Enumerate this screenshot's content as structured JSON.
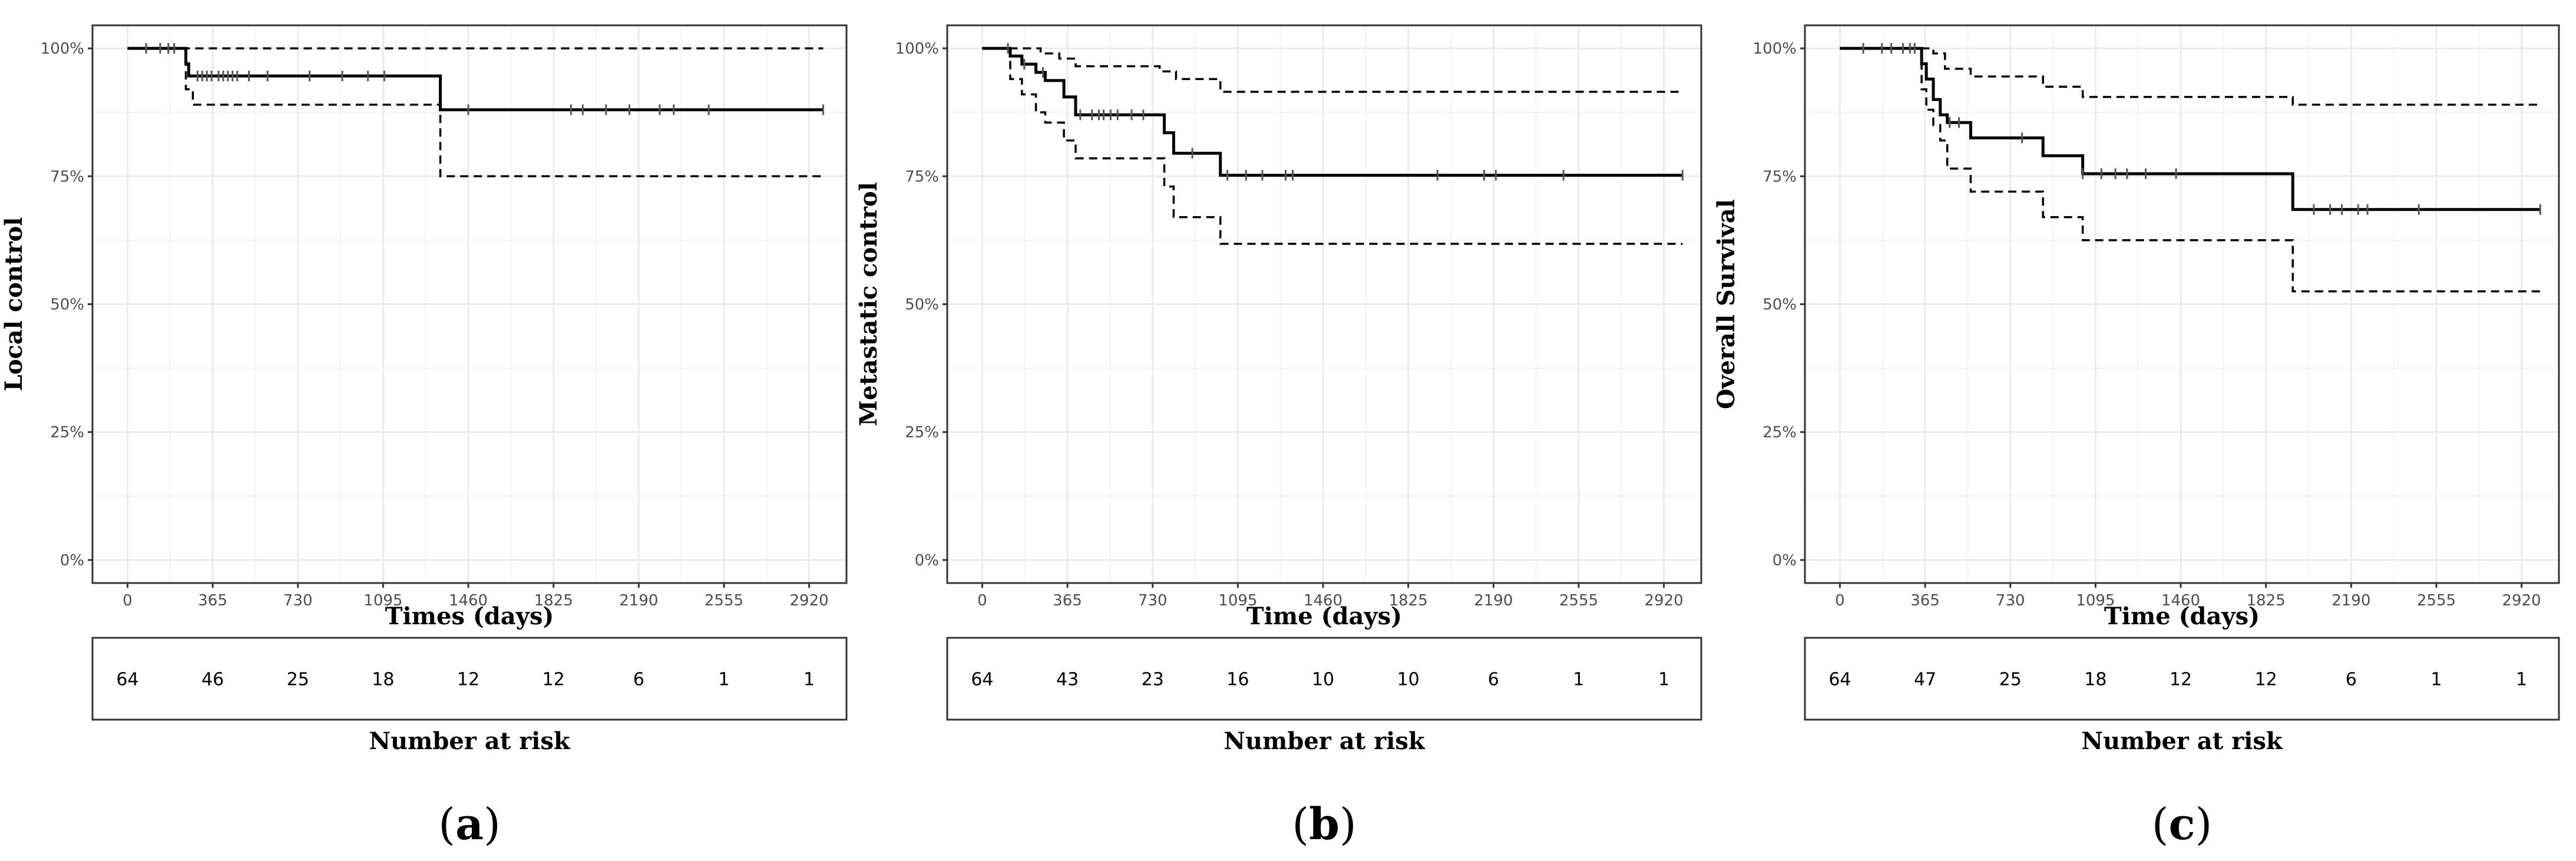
{
  "figure": {
    "risk_table_title": "Number at risk"
  },
  "chart_data": [
    {
      "id": "a",
      "type": "line",
      "panel_label": "a",
      "xlabel": "Times (days)",
      "ylabel": "Local control",
      "x_ticks": [
        0,
        365,
        730,
        1095,
        1460,
        1825,
        2190,
        2555,
        2920
      ],
      "y_ticks": [
        0,
        0.25,
        0.5,
        0.75,
        1.0
      ],
      "y_tick_labels": [
        "0%",
        "25%",
        "50%",
        "75%",
        "100%"
      ],
      "xlim": [
        -150,
        3080
      ],
      "ylim": [
        -0.045,
        1.045
      ],
      "series": [
        {
          "name": "estimate",
          "style": "solid",
          "x": [
            0,
            250,
            262,
            1340,
            2980
          ],
          "y": [
            1.0,
            0.97,
            0.946,
            0.88,
            0.88
          ]
        },
        {
          "name": "upper_ci",
          "style": "dashed",
          "x": [
            0,
            2980
          ],
          "y": [
            1.0,
            1.0
          ]
        },
        {
          "name": "lower_ci",
          "style": "dashed",
          "x": [
            0,
            250,
            280,
            1340,
            2980
          ],
          "y": [
            1.0,
            0.92,
            0.89,
            0.75,
            0.75
          ]
        }
      ],
      "censor_times": [
        80,
        140,
        175,
        200,
        300,
        320,
        340,
        360,
        390,
        410,
        430,
        450,
        470,
        520,
        600,
        780,
        920,
        1030,
        1100,
        1460,
        1900,
        1950,
        2050,
        2150,
        2280,
        2340,
        2490,
        2980
      ],
      "risk_times": [
        0,
        365,
        730,
        1095,
        1460,
        1825,
        2190,
        2555,
        2920
      ],
      "at_risk": [
        "64",
        "46",
        "25",
        "18",
        "12",
        "12",
        "6",
        "1",
        "1"
      ]
    },
    {
      "id": "b",
      "type": "line",
      "panel_label": "b",
      "xlabel": "Time (days)",
      "ylabel": "Metastatic control",
      "x_ticks": [
        0,
        365,
        730,
        1095,
        1460,
        1825,
        2190,
        2555,
        2920
      ],
      "y_ticks": [
        0,
        0.25,
        0.5,
        0.75,
        1.0
      ],
      "y_tick_labels": [
        "0%",
        "25%",
        "50%",
        "75%",
        "100%"
      ],
      "xlim": [
        -150,
        3080
      ],
      "ylim": [
        -0.045,
        1.045
      ],
      "series": [
        {
          "name": "estimate",
          "style": "solid",
          "x": [
            0,
            120,
            170,
            230,
            270,
            350,
            400,
            780,
            820,
            1020,
            3000
          ],
          "y": [
            1.0,
            0.985,
            0.969,
            0.953,
            0.937,
            0.905,
            0.87,
            0.835,
            0.795,
            0.752,
            0.752
          ]
        },
        {
          "name": "upper_ci",
          "style": "dashed",
          "x": [
            0,
            250,
            330,
            400,
            760,
            830,
            1020,
            3000
          ],
          "y": [
            1.0,
            0.99,
            0.98,
            0.965,
            0.955,
            0.94,
            0.915,
            0.915
          ]
        },
        {
          "name": "lower_ci",
          "style": "dashed",
          "x": [
            0,
            120,
            170,
            230,
            270,
            350,
            400,
            780,
            820,
            1020,
            3000
          ],
          "y": [
            1.0,
            0.94,
            0.91,
            0.875,
            0.855,
            0.82,
            0.785,
            0.73,
            0.67,
            0.618,
            0.618
          ]
        }
      ],
      "censor_times": [
        110,
        180,
        260,
        420,
        470,
        500,
        520,
        550,
        580,
        640,
        690,
        900,
        1050,
        1130,
        1200,
        1300,
        1330,
        1950,
        2150,
        2200,
        2490,
        3000
      ],
      "risk_times": [
        0,
        365,
        730,
        1095,
        1460,
        1825,
        2190,
        2555,
        2920
      ],
      "at_risk": [
        "64",
        "43",
        "23",
        "16",
        "10",
        "10",
        "6",
        "1",
        "1"
      ]
    },
    {
      "id": "c",
      "type": "line",
      "panel_label": "c",
      "xlabel": "Time (days)",
      "ylabel": "Overall Survival",
      "x_ticks": [
        0,
        365,
        730,
        1095,
        1460,
        1825,
        2190,
        2555,
        2920
      ],
      "y_ticks": [
        0,
        0.25,
        0.5,
        0.75,
        1.0
      ],
      "y_tick_labels": [
        "0%",
        "25%",
        "50%",
        "75%",
        "100%"
      ],
      "xlim": [
        -150,
        3080
      ],
      "ylim": [
        -0.045,
        1.045
      ],
      "series": [
        {
          "name": "estimate",
          "style": "solid",
          "x": [
            0,
            350,
            370,
            400,
            430,
            460,
            560,
            870,
            1040,
            1940,
            3000
          ],
          "y": [
            1.0,
            0.97,
            0.94,
            0.9,
            0.87,
            0.855,
            0.825,
            0.79,
            0.755,
            0.685,
            0.685
          ]
        },
        {
          "name": "upper_ci",
          "style": "dashed",
          "x": [
            0,
            400,
            450,
            560,
            870,
            1040,
            1940,
            3000
          ],
          "y": [
            1.0,
            0.99,
            0.96,
            0.945,
            0.925,
            0.905,
            0.89,
            0.89
          ]
        },
        {
          "name": "lower_ci",
          "style": "dashed",
          "x": [
            0,
            350,
            370,
            400,
            430,
            460,
            560,
            870,
            1040,
            1940,
            3000
          ],
          "y": [
            1.0,
            0.92,
            0.88,
            0.85,
            0.82,
            0.765,
            0.72,
            0.67,
            0.625,
            0.525,
            0.525
          ]
        }
      ],
      "censor_times": [
        100,
        180,
        220,
        270,
        300,
        320,
        470,
        510,
        780,
        1040,
        1120,
        1180,
        1230,
        1310,
        1440,
        2030,
        2100,
        2150,
        2220,
        2260,
        2480,
        3000
      ],
      "risk_times": [
        0,
        365,
        730,
        1095,
        1460,
        1825,
        2190,
        2555,
        2920
      ],
      "at_risk": [
        "64",
        "47",
        "25",
        "18",
        "12",
        "12",
        "6",
        "1",
        "1"
      ]
    }
  ]
}
